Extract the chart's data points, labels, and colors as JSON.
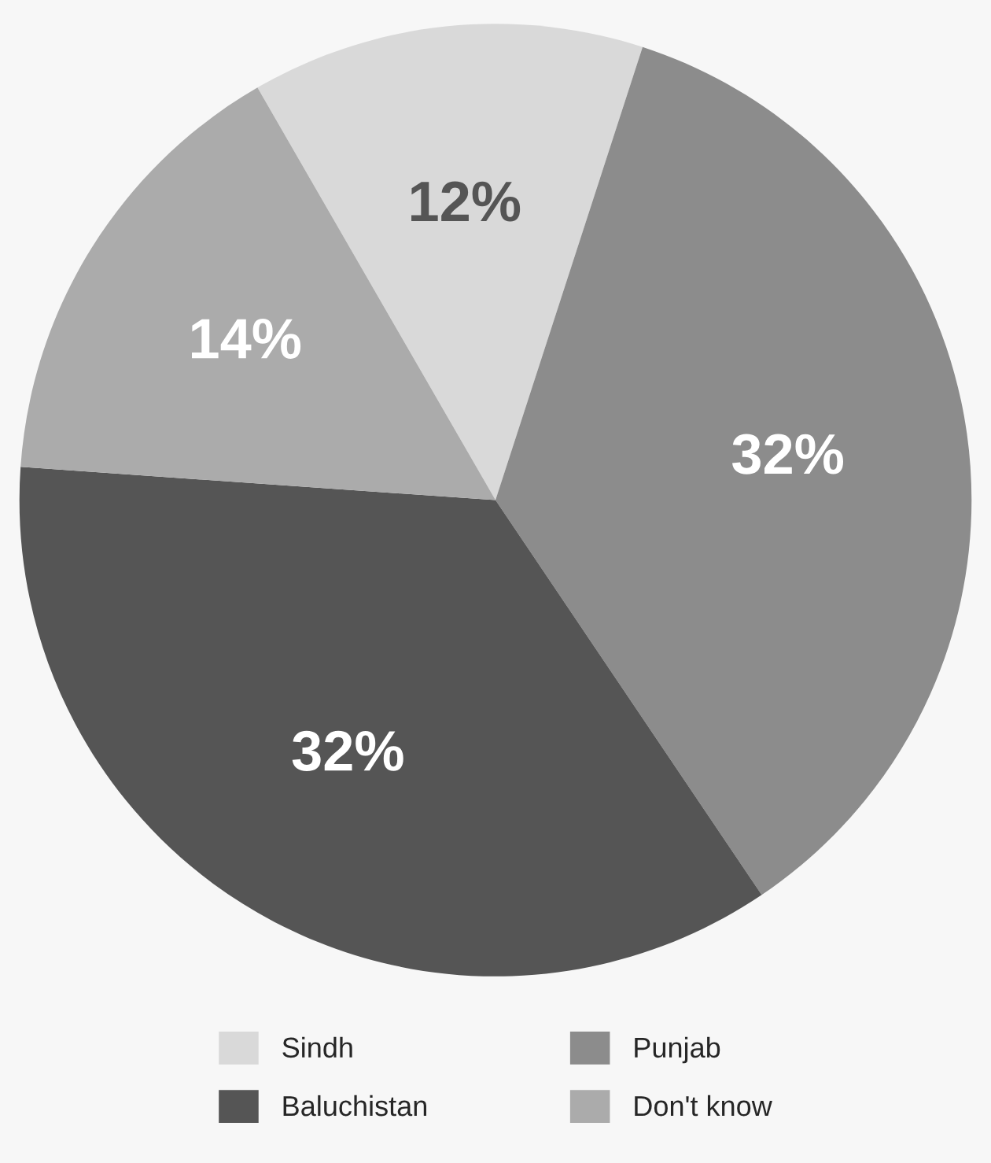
{
  "chart_data": {
    "type": "pie",
    "categories": [
      "Sindh",
      "Punjab",
      "Baluchistan",
      "Don't know"
    ],
    "values": [
      12,
      32,
      32,
      14
    ],
    "colors": [
      "#d9d9d9",
      "#8c8c8c",
      "#555555",
      "#ababab"
    ],
    "value_labels": [
      "12%",
      "32%",
      "32%",
      "14%"
    ],
    "legend": "bottom"
  }
}
